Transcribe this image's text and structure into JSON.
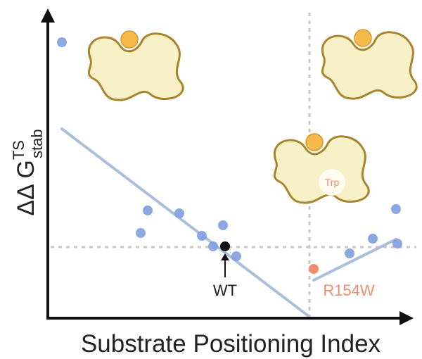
{
  "axes": {
    "y_label": {
      "base": "ΔΔ G",
      "superscript": "TS",
      "subscript": "stab"
    },
    "x_label": "Substrate Positioning Index"
  },
  "annotations": {
    "wt": "WT",
    "mutant": "R154W",
    "residue": "Trp"
  }
}
